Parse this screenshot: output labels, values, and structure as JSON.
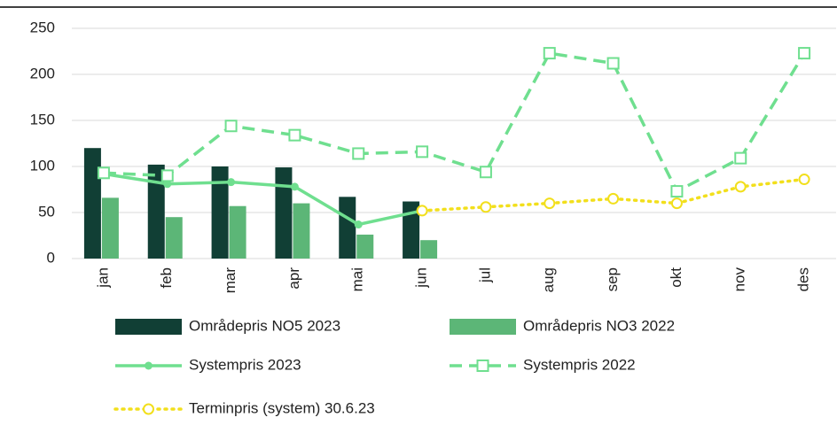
{
  "chart_data": {
    "type": "bar",
    "categories": [
      "jan",
      "feb",
      "mar",
      "apr",
      "mai",
      "jun",
      "jul",
      "aug",
      "sep",
      "okt",
      "nov",
      "des"
    ],
    "ylim": [
      0,
      250
    ],
    "yticks": [
      0,
      50,
      100,
      150,
      200,
      250
    ],
    "grid": true,
    "series": [
      {
        "name": "Områdepris NO5 2023",
        "type": "bar",
        "color": "#113f35",
        "values": [
          120,
          102,
          100,
          99,
          67,
          62,
          null,
          null,
          null,
          null,
          null,
          null
        ]
      },
      {
        "name": "Områdepris NO3 2022",
        "type": "bar",
        "color": "#5cb677",
        "values": [
          66,
          45,
          57,
          60,
          26,
          20,
          null,
          null,
          null,
          null,
          null,
          null
        ]
      },
      {
        "name": "Systempris 2023",
        "type": "line",
        "color": "#6fdf8f",
        "dash": "solid",
        "marker": "dot",
        "values": [
          92,
          81,
          83,
          78,
          37,
          52,
          null,
          null,
          null,
          null,
          null,
          null
        ]
      },
      {
        "name": "Systempris 2022",
        "type": "line",
        "color": "#6fdf8f",
        "dash": "dashed",
        "marker": "square",
        "values": [
          93,
          90,
          144,
          134,
          114,
          116,
          94,
          223,
          212,
          73,
          109,
          223
        ]
      },
      {
        "name": "Terminpris (system) 30.6.23",
        "type": "line",
        "color": "#f2df1c",
        "dash": "dotted",
        "marker": "circle",
        "values": [
          null,
          null,
          null,
          null,
          null,
          52,
          56,
          60,
          65,
          60,
          78,
          86
        ]
      }
    ]
  }
}
